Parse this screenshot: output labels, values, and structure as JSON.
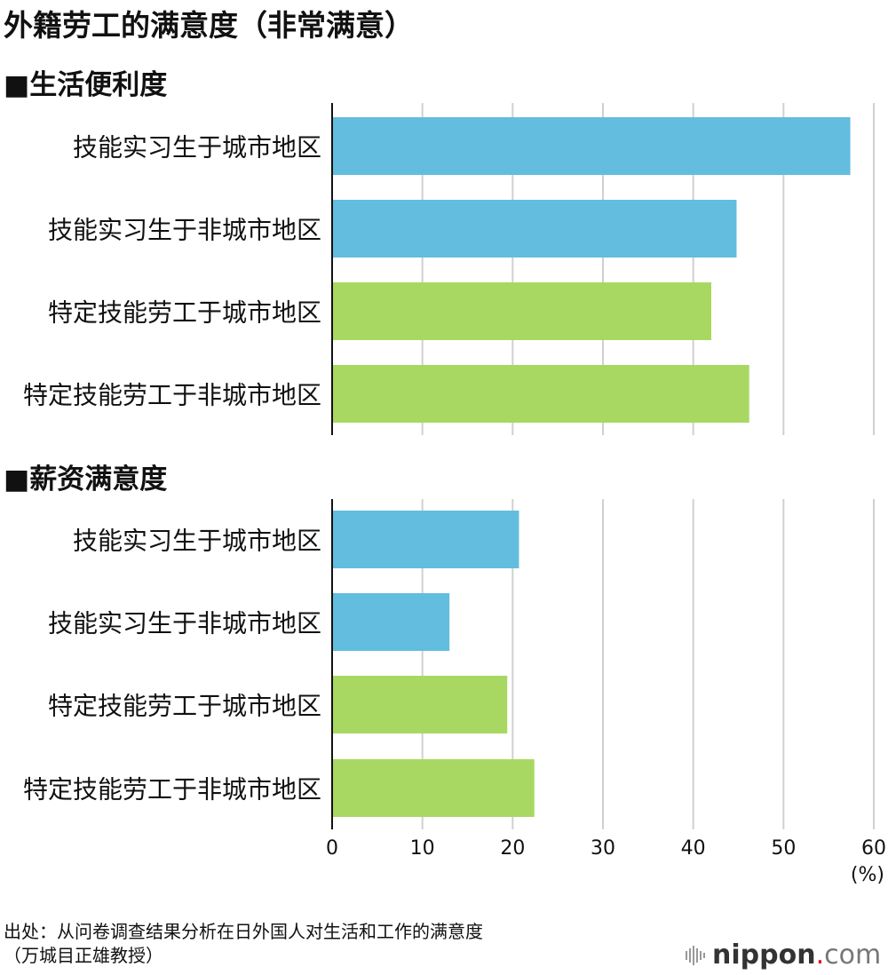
{
  "title": "外籍劳工的满意度（非常满意）",
  "chart_data": [
    {
      "type": "bar",
      "orientation": "horizontal",
      "title": "■生活便利度",
      "categories": [
        "技能实习生于城市地区",
        "技能实习生于非城市地区",
        "特定技能劳工于城市地区",
        "特定技能劳工于非城市地区"
      ],
      "values": [
        57.4,
        44.8,
        42.0,
        46.2
      ],
      "colors": [
        "#62bddf",
        "#62bddf",
        "#a8d862",
        "#a8d862"
      ],
      "xlim": [
        0,
        60
      ],
      "grid": true
    },
    {
      "type": "bar",
      "orientation": "horizontal",
      "title": "■薪资满意度",
      "categories": [
        "技能实习生于城市地区",
        "技能实习生于非城市地区",
        "特定技能劳工于城市地区",
        "特定技能劳工于非城市地区"
      ],
      "values": [
        20.7,
        13.0,
        19.4,
        22.4
      ],
      "colors": [
        "#62bddf",
        "#62bddf",
        "#a8d862",
        "#a8d862"
      ],
      "xlim": [
        0,
        60
      ],
      "xticks": [
        "0",
        "10",
        "20",
        "30",
        "40",
        "50",
        "60"
      ],
      "unit": "(%)",
      "grid": true
    }
  ],
  "source": {
    "line1": "出处：从问卷调查结果分析在日外国人对生活和工作的满意度",
    "line2": "（万城目正雄教授）"
  },
  "logo": {
    "name": "nippon",
    "dot": ".",
    "suffix": "com"
  }
}
